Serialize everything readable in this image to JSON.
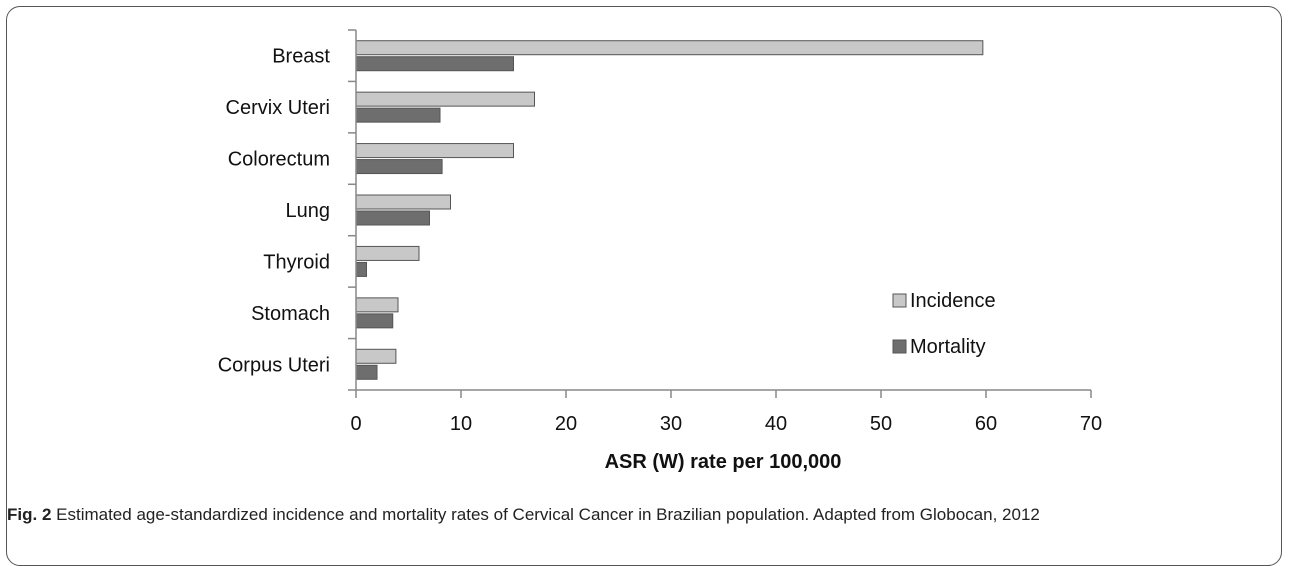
{
  "chart_data": {
    "type": "bar",
    "orientation": "horizontal",
    "categories": [
      "Breast",
      "Cervix Uteri",
      "Colorectum",
      "Lung",
      "Thyroid",
      "Stomach",
      "Corpus Uteri"
    ],
    "series": [
      {
        "name": "Incidence",
        "values": [
          59.7,
          17.0,
          15.0,
          9.0,
          6.0,
          4.0,
          3.8
        ],
        "color": "#c8c8c8"
      },
      {
        "name": "Mortality",
        "values": [
          15.0,
          8.0,
          8.2,
          7.0,
          1.0,
          3.5,
          2.0
        ],
        "color": "#6e6e6e"
      }
    ],
    "xticks": [
      "0",
      "10",
      "20",
      "30",
      "40",
      "50",
      "60",
      "70"
    ],
    "xlim": [
      0,
      70
    ],
    "xlabel": "ASR (W) rate per 100,000",
    "legend_position": "bottom-right",
    "grid": false
  },
  "caption": {
    "label": "Fig. 2",
    "text": " Estimated age-standardized incidence and mortality rates of Cervical Cancer in Brazilian population. Adapted from Globocan, 2012"
  }
}
